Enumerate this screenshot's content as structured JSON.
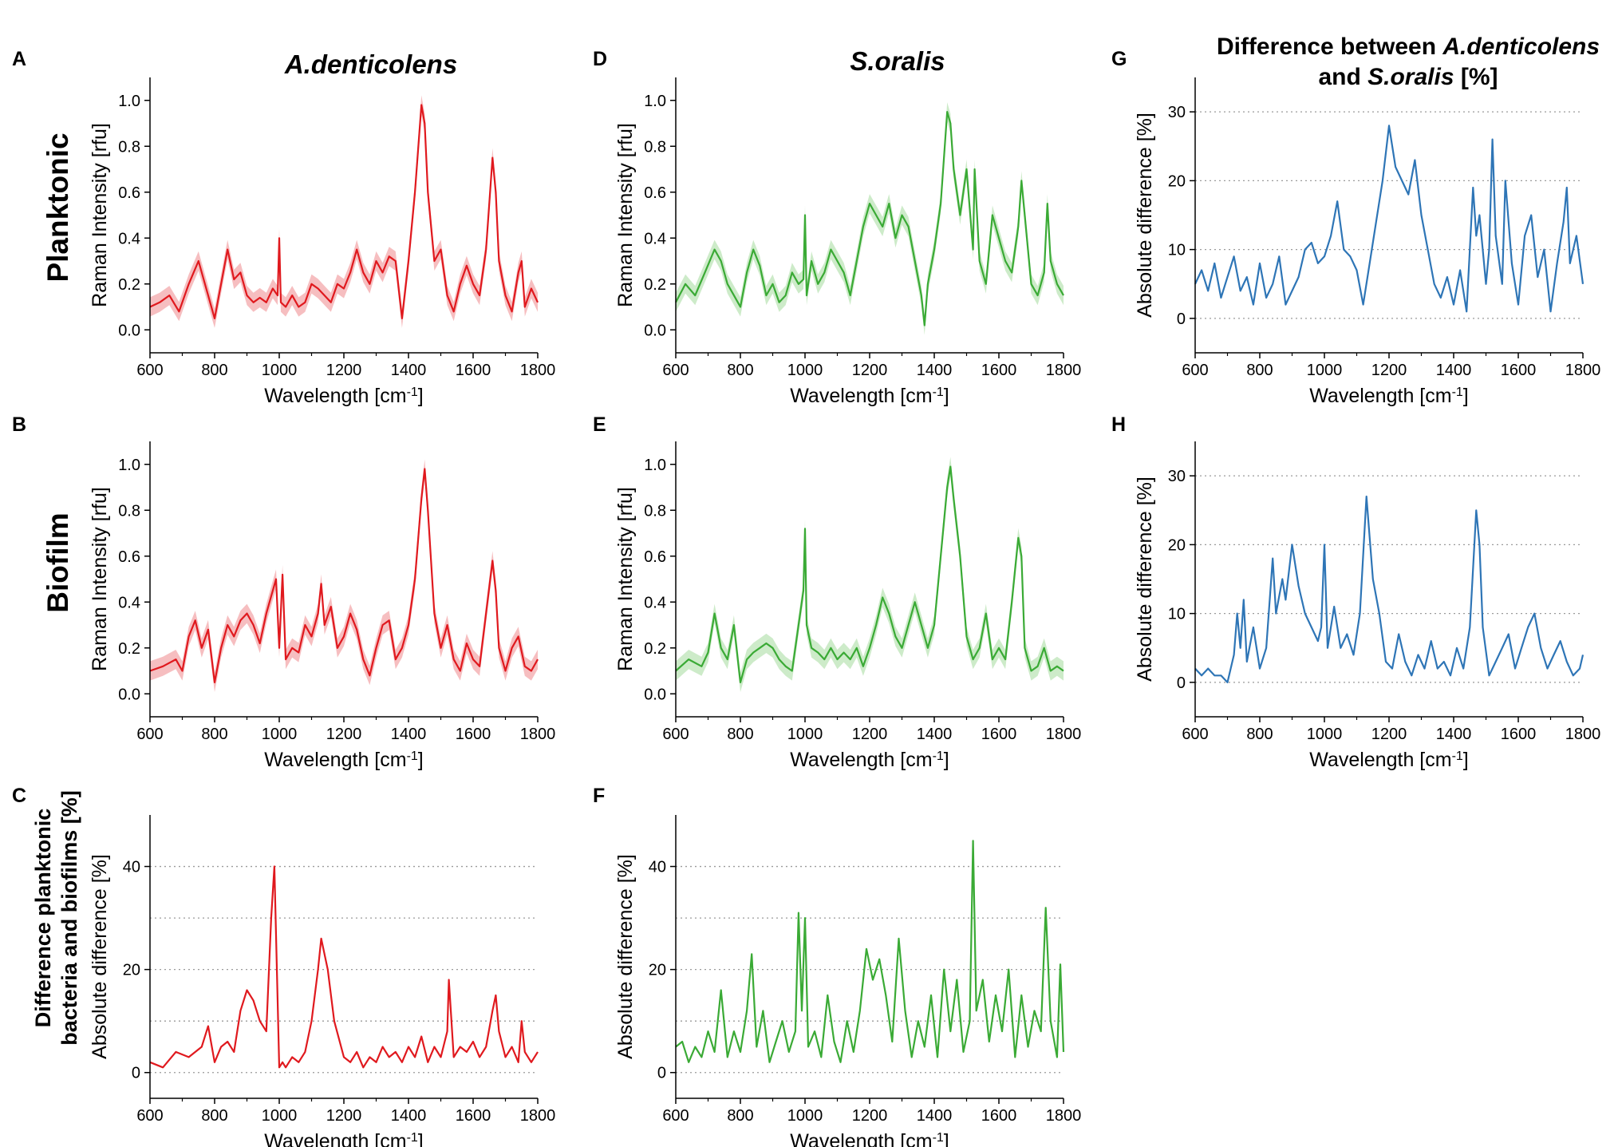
{
  "figure": {
    "column_titles": {
      "a": "A.denticolens",
      "d": "S.oralis"
    },
    "g_title": {
      "line1_prefix": "Difference between ",
      "line1_italic": "A.denticolens",
      "line2_prefix": "and ",
      "line2_italic": "S.oralis",
      "line2_suffix": " [%]"
    },
    "row_labels": {
      "planktonic": "Planktonic",
      "biofilm": "Biofilm",
      "difference_line1": "Difference planktonic",
      "difference_line2": "bacteria and biofilms [%]"
    },
    "colors": {
      "red": "#e0191e",
      "red_band": "#f5b3b5",
      "green": "#3aaa35",
      "green_band": "#c4e8c0",
      "blue": "#2e75b6"
    }
  },
  "chart_data": [
    {
      "panel": "A",
      "type": "line",
      "band": true,
      "color": "red",
      "row": 0,
      "col": 0,
      "xlabel": "Wavelength [cm",
      "xlabel_sup": "-1",
      "xlabel_end": "]",
      "ylabel": "Raman Intensity [rfu]",
      "xlim": [
        600,
        1800
      ],
      "ylim": [
        -0.1,
        1.1
      ],
      "xticks": [
        "600",
        "800",
        "1000",
        "1200",
        "1400",
        "1600",
        "1800"
      ],
      "yticks": [
        "0.0",
        "0.2",
        "0.4",
        "0.6",
        "0.8",
        "1.0"
      ],
      "grid": false,
      "x": [
        600,
        630,
        660,
        690,
        720,
        750,
        780,
        800,
        820,
        840,
        860,
        880,
        900,
        920,
        940,
        960,
        980,
        995,
        1000,
        1005,
        1020,
        1040,
        1060,
        1080,
        1100,
        1120,
        1140,
        1160,
        1180,
        1200,
        1220,
        1240,
        1260,
        1280,
        1300,
        1320,
        1340,
        1360,
        1380,
        1400,
        1420,
        1440,
        1450,
        1460,
        1480,
        1500,
        1520,
        1540,
        1560,
        1580,
        1600,
        1620,
        1640,
        1660,
        1670,
        1680,
        1700,
        1720,
        1740,
        1750,
        1760,
        1780,
        1800
      ],
      "y": [
        0.1,
        0.12,
        0.15,
        0.08,
        0.2,
        0.3,
        0.15,
        0.05,
        0.2,
        0.35,
        0.22,
        0.25,
        0.15,
        0.12,
        0.14,
        0.12,
        0.18,
        0.15,
        0.4,
        0.12,
        0.1,
        0.15,
        0.1,
        0.12,
        0.2,
        0.18,
        0.15,
        0.12,
        0.2,
        0.18,
        0.25,
        0.35,
        0.25,
        0.2,
        0.3,
        0.25,
        0.32,
        0.3,
        0.05,
        0.3,
        0.6,
        0.98,
        0.9,
        0.6,
        0.3,
        0.35,
        0.15,
        0.08,
        0.2,
        0.28,
        0.2,
        0.15,
        0.35,
        0.75,
        0.6,
        0.3,
        0.15,
        0.08,
        0.25,
        0.3,
        0.1,
        0.18,
        0.12
      ]
    },
    {
      "panel": "B",
      "type": "line",
      "band": true,
      "color": "red",
      "row": 1,
      "col": 0,
      "xlabel": "Wavelength [cm",
      "xlabel_sup": "-1",
      "xlabel_end": "]",
      "ylabel": "Raman Intensity [rfu]",
      "xlim": [
        600,
        1800
      ],
      "ylim": [
        -0.1,
        1.1
      ],
      "xticks": [
        "600",
        "800",
        "1000",
        "1200",
        "1400",
        "1600",
        "1800"
      ],
      "yticks": [
        "0.0",
        "0.2",
        "0.4",
        "0.6",
        "0.8",
        "1.0"
      ],
      "grid": false,
      "x": [
        600,
        640,
        680,
        700,
        720,
        740,
        760,
        780,
        800,
        820,
        840,
        860,
        880,
        900,
        920,
        940,
        960,
        980,
        990,
        1000,
        1010,
        1020,
        1040,
        1060,
        1080,
        1100,
        1120,
        1130,
        1140,
        1160,
        1180,
        1200,
        1220,
        1240,
        1260,
        1280,
        1300,
        1320,
        1340,
        1360,
        1380,
        1400,
        1420,
        1440,
        1450,
        1460,
        1480,
        1500,
        1520,
        1540,
        1560,
        1580,
        1600,
        1620,
        1640,
        1660,
        1670,
        1680,
        1700,
        1720,
        1740,
        1760,
        1780,
        1800
      ],
      "y": [
        0.1,
        0.12,
        0.15,
        0.1,
        0.25,
        0.32,
        0.2,
        0.28,
        0.05,
        0.2,
        0.3,
        0.25,
        0.32,
        0.35,
        0.3,
        0.22,
        0.35,
        0.45,
        0.5,
        0.2,
        0.52,
        0.15,
        0.2,
        0.18,
        0.3,
        0.25,
        0.35,
        0.48,
        0.3,
        0.38,
        0.2,
        0.25,
        0.35,
        0.28,
        0.15,
        0.08,
        0.2,
        0.3,
        0.32,
        0.15,
        0.2,
        0.3,
        0.5,
        0.85,
        0.98,
        0.8,
        0.35,
        0.2,
        0.3,
        0.15,
        0.1,
        0.22,
        0.15,
        0.12,
        0.35,
        0.58,
        0.45,
        0.2,
        0.1,
        0.2,
        0.25,
        0.12,
        0.1,
        0.15
      ]
    },
    {
      "panel": "C",
      "type": "line",
      "band": false,
      "color": "red",
      "row": 2,
      "col": 0,
      "xlabel": "Wavelength [cm",
      "xlabel_sup": "-1",
      "xlabel_end": "]",
      "ylabel": "Absolute difference [%]",
      "xlim": [
        600,
        1800
      ],
      "ylim": [
        -5,
        50
      ],
      "xticks": [
        "600",
        "800",
        "1000",
        "1200",
        "1400",
        "1600",
        "1800"
      ],
      "yticks": [
        "0",
        "20",
        "40"
      ],
      "grid": true,
      "gridlines": [
        0,
        10,
        20,
        30,
        40
      ],
      "x": [
        600,
        640,
        680,
        720,
        760,
        780,
        800,
        820,
        840,
        860,
        880,
        900,
        920,
        940,
        960,
        975,
        985,
        1000,
        1010,
        1020,
        1040,
        1060,
        1080,
        1100,
        1120,
        1130,
        1150,
        1170,
        1200,
        1220,
        1240,
        1260,
        1280,
        1300,
        1320,
        1340,
        1360,
        1380,
        1400,
        1420,
        1440,
        1460,
        1480,
        1500,
        1520,
        1525,
        1540,
        1560,
        1580,
        1600,
        1620,
        1640,
        1660,
        1670,
        1680,
        1700,
        1720,
        1740,
        1750,
        1760,
        1780,
        1800
      ],
      "y": [
        2,
        1,
        4,
        3,
        5,
        9,
        2,
        5,
        6,
        4,
        12,
        16,
        14,
        10,
        8,
        30,
        40,
        1,
        2,
        1,
        3,
        2,
        4,
        10,
        20,
        26,
        20,
        10,
        3,
        2,
        4,
        1,
        3,
        2,
        5,
        3,
        4,
        2,
        5,
        3,
        7,
        2,
        5,
        3,
        8,
        18,
        3,
        5,
        4,
        6,
        3,
        5,
        12,
        15,
        8,
        3,
        5,
        2,
        10,
        4,
        2,
        4
      ]
    },
    {
      "panel": "D",
      "type": "line",
      "band": true,
      "color": "green",
      "row": 0,
      "col": 1,
      "xlabel": "Wavelength [cm",
      "xlabel_sup": "-1",
      "xlabel_end": "]",
      "ylabel": "Raman Intensity [rfu]",
      "xlim": [
        600,
        1800
      ],
      "ylim": [
        -0.1,
        1.1
      ],
      "xticks": [
        "600",
        "800",
        "1000",
        "1200",
        "1400",
        "1600",
        "1800"
      ],
      "yticks": [
        "0.0",
        "0.2",
        "0.4",
        "0.6",
        "0.8",
        "1.0"
      ],
      "grid": false,
      "x": [
        600,
        630,
        660,
        690,
        720,
        740,
        760,
        780,
        800,
        820,
        840,
        860,
        880,
        900,
        920,
        940,
        960,
        980,
        995,
        1000,
        1005,
        1020,
        1040,
        1060,
        1080,
        1100,
        1120,
        1140,
        1160,
        1180,
        1200,
        1220,
        1240,
        1260,
        1280,
        1300,
        1320,
        1340,
        1360,
        1370,
        1380,
        1400,
        1420,
        1440,
        1450,
        1460,
        1480,
        1500,
        1520,
        1525,
        1540,
        1560,
        1580,
        1600,
        1620,
        1640,
        1660,
        1670,
        1680,
        1700,
        1720,
        1740,
        1750,
        1760,
        1780,
        1800
      ],
      "y": [
        0.12,
        0.2,
        0.15,
        0.25,
        0.35,
        0.3,
        0.2,
        0.15,
        0.1,
        0.25,
        0.35,
        0.28,
        0.15,
        0.2,
        0.12,
        0.15,
        0.25,
        0.2,
        0.22,
        0.5,
        0.15,
        0.3,
        0.2,
        0.25,
        0.35,
        0.3,
        0.25,
        0.15,
        0.3,
        0.45,
        0.55,
        0.5,
        0.45,
        0.55,
        0.4,
        0.5,
        0.45,
        0.3,
        0.15,
        0.02,
        0.2,
        0.35,
        0.55,
        0.95,
        0.9,
        0.7,
        0.5,
        0.7,
        0.35,
        0.7,
        0.3,
        0.2,
        0.5,
        0.4,
        0.3,
        0.25,
        0.45,
        0.65,
        0.5,
        0.2,
        0.15,
        0.25,
        0.55,
        0.3,
        0.2,
        0.15
      ]
    },
    {
      "panel": "E",
      "type": "line",
      "band": true,
      "color": "green",
      "row": 1,
      "col": 1,
      "xlabel": "Wavelength [cm",
      "xlabel_sup": "-1",
      "xlabel_end": "]",
      "ylabel": "Raman Intensity [rfu]",
      "xlim": [
        600,
        1800
      ],
      "ylim": [
        -0.1,
        1.1
      ],
      "xticks": [
        "600",
        "800",
        "1000",
        "1200",
        "1400",
        "1600",
        "1800"
      ],
      "yticks": [
        "0.0",
        "0.2",
        "0.4",
        "0.6",
        "0.8",
        "1.0"
      ],
      "grid": false,
      "x": [
        600,
        640,
        680,
        700,
        720,
        740,
        760,
        780,
        800,
        820,
        840,
        860,
        880,
        900,
        920,
        940,
        960,
        980,
        995,
        1000,
        1005,
        1020,
        1040,
        1060,
        1080,
        1100,
        1120,
        1140,
        1160,
        1180,
        1200,
        1220,
        1240,
        1260,
        1280,
        1300,
        1320,
        1340,
        1360,
        1380,
        1400,
        1420,
        1440,
        1450,
        1460,
        1480,
        1500,
        1520,
        1540,
        1560,
        1570,
        1580,
        1600,
        1620,
        1640,
        1660,
        1670,
        1680,
        1700,
        1720,
        1740,
        1760,
        1780,
        1800
      ],
      "y": [
        0.1,
        0.15,
        0.12,
        0.18,
        0.35,
        0.2,
        0.15,
        0.3,
        0.05,
        0.15,
        0.18,
        0.2,
        0.22,
        0.2,
        0.15,
        0.12,
        0.1,
        0.3,
        0.45,
        0.72,
        0.3,
        0.2,
        0.18,
        0.15,
        0.2,
        0.15,
        0.18,
        0.15,
        0.2,
        0.12,
        0.2,
        0.3,
        0.42,
        0.35,
        0.25,
        0.2,
        0.3,
        0.4,
        0.3,
        0.2,
        0.3,
        0.6,
        0.9,
        0.99,
        0.85,
        0.6,
        0.25,
        0.15,
        0.2,
        0.35,
        0.25,
        0.15,
        0.2,
        0.15,
        0.4,
        0.68,
        0.6,
        0.2,
        0.1,
        0.12,
        0.2,
        0.1,
        0.12,
        0.1
      ]
    },
    {
      "panel": "F",
      "type": "line",
      "band": false,
      "color": "green",
      "row": 2,
      "col": 1,
      "xlabel": "Wavelength [cm",
      "xlabel_sup": "-1",
      "xlabel_end": "]",
      "ylabel": "Absolute difference [%]",
      "xlim": [
        600,
        1800
      ],
      "ylim": [
        -5,
        50
      ],
      "xticks": [
        "600",
        "800",
        "1000",
        "1200",
        "1400",
        "1600",
        "1800"
      ],
      "yticks": [
        "0",
        "20",
        "40"
      ],
      "grid": true,
      "gridlines": [
        0,
        10,
        20,
        30,
        40
      ],
      "x": [
        600,
        620,
        640,
        660,
        680,
        700,
        720,
        740,
        760,
        780,
        800,
        820,
        835,
        850,
        870,
        890,
        910,
        930,
        950,
        970,
        980,
        990,
        1000,
        1010,
        1030,
        1050,
        1070,
        1090,
        1110,
        1130,
        1150,
        1170,
        1190,
        1210,
        1230,
        1250,
        1270,
        1290,
        1310,
        1330,
        1350,
        1370,
        1390,
        1410,
        1430,
        1450,
        1470,
        1490,
        1510,
        1520,
        1530,
        1550,
        1570,
        1590,
        1610,
        1630,
        1650,
        1670,
        1690,
        1710,
        1730,
        1745,
        1760,
        1780,
        1790,
        1800
      ],
      "y": [
        5,
        6,
        2,
        5,
        3,
        8,
        4,
        16,
        3,
        8,
        4,
        12,
        23,
        5,
        12,
        2,
        6,
        10,
        4,
        8,
        31,
        12,
        30,
        5,
        8,
        3,
        15,
        6,
        2,
        10,
        4,
        12,
        24,
        18,
        22,
        15,
        6,
        26,
        12,
        3,
        10,
        5,
        15,
        3,
        20,
        8,
        18,
        4,
        10,
        45,
        12,
        18,
        6,
        15,
        8,
        20,
        3,
        15,
        5,
        12,
        8,
        32,
        10,
        3,
        21,
        4
      ]
    },
    {
      "panel": "G",
      "type": "line",
      "band": false,
      "color": "blue",
      "row": 0,
      "col": 2,
      "xlabel": "Wavelength [cm",
      "xlabel_sup": "-1",
      "xlabel_end": "]",
      "ylabel": "Absolute difference [%]",
      "xlim": [
        600,
        1800
      ],
      "ylim": [
        -5,
        35
      ],
      "xticks": [
        "600",
        "800",
        "1000",
        "1200",
        "1400",
        "1600",
        "1800"
      ],
      "yticks": [
        "0",
        "10",
        "20",
        "30"
      ],
      "grid": true,
      "gridlines": [
        0,
        10,
        20,
        30
      ],
      "x": [
        600,
        620,
        640,
        660,
        680,
        700,
        720,
        740,
        760,
        780,
        800,
        820,
        840,
        860,
        880,
        900,
        920,
        940,
        960,
        980,
        1000,
        1020,
        1040,
        1060,
        1080,
        1100,
        1120,
        1140,
        1160,
        1180,
        1200,
        1220,
        1240,
        1260,
        1280,
        1300,
        1320,
        1340,
        1360,
        1380,
        1400,
        1420,
        1440,
        1460,
        1470,
        1480,
        1500,
        1510,
        1520,
        1530,
        1550,
        1560,
        1580,
        1600,
        1620,
        1640,
        1660,
        1680,
        1700,
        1720,
        1740,
        1750,
        1760,
        1780,
        1800
      ],
      "y": [
        5,
        7,
        4,
        8,
        3,
        6,
        9,
        4,
        6,
        2,
        8,
        3,
        5,
        9,
        2,
        4,
        6,
        10,
        11,
        8,
        9,
        12,
        17,
        10,
        9,
        7,
        2,
        8,
        14,
        20,
        28,
        22,
        20,
        18,
        23,
        15,
        10,
        5,
        3,
        6,
        2,
        7,
        1,
        19,
        12,
        15,
        5,
        10,
        26,
        12,
        5,
        20,
        8,
        2,
        12,
        15,
        6,
        10,
        1,
        8,
        14,
        19,
        8,
        12,
        5
      ]
    },
    {
      "panel": "H",
      "type": "line",
      "band": false,
      "color": "blue",
      "row": 1,
      "col": 2,
      "xlabel": "Wavelength [cm",
      "xlabel_sup": "-1",
      "xlabel_end": "]",
      "ylabel": "Absolute difference [%]",
      "xlim": [
        600,
        1800
      ],
      "ylim": [
        -5,
        35
      ],
      "xticks": [
        "600",
        "800",
        "1000",
        "1200",
        "1400",
        "1600",
        "1800"
      ],
      "yticks": [
        "0",
        "10",
        "20",
        "30"
      ],
      "grid": true,
      "gridlines": [
        0,
        10,
        20,
        30
      ],
      "x": [
        600,
        620,
        640,
        660,
        680,
        700,
        720,
        730,
        740,
        750,
        760,
        780,
        800,
        820,
        840,
        850,
        870,
        880,
        900,
        920,
        940,
        960,
        980,
        990,
        1000,
        1010,
        1030,
        1050,
        1070,
        1090,
        1110,
        1130,
        1150,
        1170,
        1190,
        1210,
        1230,
        1250,
        1270,
        1290,
        1310,
        1330,
        1350,
        1370,
        1390,
        1410,
        1430,
        1450,
        1470,
        1480,
        1490,
        1510,
        1530,
        1550,
        1570,
        1590,
        1610,
        1630,
        1650,
        1670,
        1690,
        1710,
        1730,
        1750,
        1770,
        1790,
        1800
      ],
      "y": [
        2,
        1,
        2,
        1,
        1,
        0,
        4,
        10,
        5,
        12,
        3,
        8,
        2,
        5,
        18,
        10,
        15,
        12,
        20,
        14,
        10,
        8,
        6,
        8,
        20,
        5,
        11,
        5,
        7,
        4,
        10,
        27,
        15,
        10,
        3,
        2,
        7,
        3,
        1,
        4,
        2,
        6,
        2,
        3,
        1,
        5,
        2,
        8,
        25,
        20,
        8,
        1,
        3,
        5,
        7,
        2,
        5,
        8,
        10,
        5,
        2,
        4,
        6,
        3,
        1,
        2,
        4
      ]
    }
  ]
}
